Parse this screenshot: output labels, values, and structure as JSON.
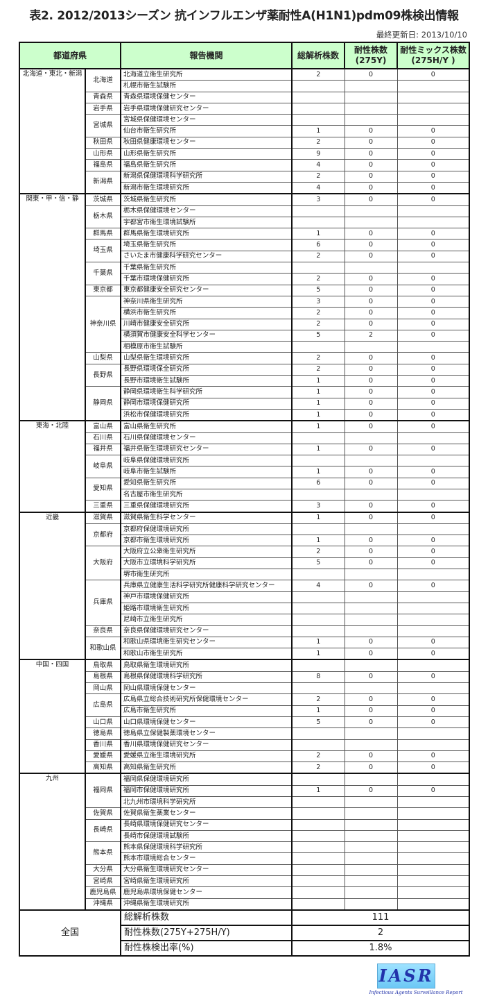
{
  "title": "表2. 2012/2013シーズン 抗インフルエンザ薬耐性A(H1N1)pdm09株検出情報",
  "updated": "最終更新日:  2013/10/10",
  "header_color": "#ccffcc",
  "columns": [
    "都道府県",
    "報告機関",
    "総解析株数",
    "耐性株数\n(275Y)",
    "耐性ミックス株数\n(275H/Y )"
  ],
  "regions": [
    {
      "name": "北海道・東北・新潟",
      "prefectures": [
        {
          "name": "北海道",
          "rows": [
            [
              "北海道立衛生研究所",
              "2",
              "0",
              "0"
            ],
            [
              "札幌市衛生試験所",
              "",
              "",
              ""
            ]
          ]
        },
        {
          "name": "青森県",
          "rows": [
            [
              "青森県環境保健センター",
              "",
              "",
              ""
            ]
          ]
        },
        {
          "name": "岩手県",
          "rows": [
            [
              "岩手県環境保健研究センター",
              "",
              "",
              ""
            ]
          ]
        },
        {
          "name": "宮城県",
          "rows": [
            [
              "宮城県保健環境センター",
              "",
              "",
              ""
            ],
            [
              "仙台市衛生研究所",
              "1",
              "0",
              "0"
            ]
          ]
        },
        {
          "name": "秋田県",
          "rows": [
            [
              "秋田県健康環境センター",
              "2",
              "0",
              "0"
            ]
          ]
        },
        {
          "name": "山形県",
          "rows": [
            [
              "山形県衛生研究所",
              "9",
              "0",
              "0"
            ]
          ]
        },
        {
          "name": "福島県",
          "rows": [
            [
              "福島県衛生研究所",
              "4",
              "0",
              "0"
            ]
          ]
        },
        {
          "name": "新潟県",
          "rows": [
            [
              "新潟県保健環境科学研究所",
              "2",
              "0",
              "0"
            ],
            [
              "新潟市衛生環境研究所",
              "4",
              "0",
              "0"
            ]
          ]
        }
      ]
    },
    {
      "name": "関東・甲・信・静",
      "prefectures": [
        {
          "name": "茨城県",
          "rows": [
            [
              "茨城県衛生研究所",
              "3",
              "0",
              "0"
            ]
          ]
        },
        {
          "name": "栃木県",
          "rows": [
            [
              "栃木県保健環境センター",
              "",
              "",
              ""
            ],
            [
              "宇都宮市衛生環境試験所",
              "",
              "",
              ""
            ]
          ]
        },
        {
          "name": "群馬県",
          "rows": [
            [
              "群馬県衛生環境研究所",
              "1",
              "0",
              "0"
            ]
          ]
        },
        {
          "name": "埼玉県",
          "rows": [
            [
              "埼玉県衛生研究所",
              "6",
              "0",
              "0"
            ],
            [
              "さいたま市健康科学研究センター",
              "2",
              "0",
              "0"
            ]
          ]
        },
        {
          "name": "千葉県",
          "rows": [
            [
              "千葉県衛生研究所",
              "",
              "",
              ""
            ],
            [
              "千葉市環境保健研究所",
              "2",
              "0",
              "0"
            ]
          ]
        },
        {
          "name": "東京都",
          "rows": [
            [
              "東京都健康安全研究センター",
              "5",
              "0",
              "0"
            ]
          ]
        },
        {
          "name": "神奈川県",
          "rows": [
            [
              "神奈川県衛生研究所",
              "3",
              "0",
              "0"
            ],
            [
              "横浜市衛生研究所",
              "2",
              "0",
              "0"
            ],
            [
              "川崎市健康安全研究所",
              "2",
              "0",
              "0"
            ],
            [
              "横須賀市健康安全科学センター",
              "5",
              "2",
              "0"
            ],
            [
              "相模原市衛生試験所",
              "",
              "",
              ""
            ]
          ]
        },
        {
          "name": "山梨県",
          "rows": [
            [
              "山梨県衛生環境研究所",
              "2",
              "0",
              "0"
            ]
          ]
        },
        {
          "name": "長野県",
          "rows": [
            [
              "長野県環境保全研究所",
              "2",
              "0",
              "0"
            ],
            [
              "長野市環境衛生試験所",
              "1",
              "0",
              "0"
            ]
          ]
        },
        {
          "name": "静岡県",
          "rows": [
            [
              "静岡県環境衛生科学研究所",
              "1",
              "0",
              "0"
            ],
            [
              "静岡市環境保健研究所",
              "1",
              "0",
              "0"
            ],
            [
              "浜松市保健環境研究所",
              "1",
              "0",
              "0"
            ]
          ]
        }
      ]
    },
    {
      "name": "東海・北陸",
      "prefectures": [
        {
          "name": "富山県",
          "rows": [
            [
              "富山県衛生研究所",
              "1",
              "0",
              "0"
            ]
          ]
        },
        {
          "name": "石川県",
          "rows": [
            [
              "石川県保健環境センター",
              "",
              "",
              ""
            ]
          ]
        },
        {
          "name": "福井県",
          "rows": [
            [
              "福井県衛生環境研究センター",
              "1",
              "0",
              "0"
            ]
          ]
        },
        {
          "name": "岐阜県",
          "rows": [
            [
              "岐阜県保健環境研究所",
              "",
              "",
              ""
            ],
            [
              "岐阜市衛生試験所",
              "1",
              "0",
              "0"
            ]
          ]
        },
        {
          "name": "愛知県",
          "rows": [
            [
              "愛知県衛生研究所",
              "6",
              "0",
              "0"
            ],
            [
              "名古屋市衛生研究所",
              "",
              "",
              ""
            ]
          ]
        },
        {
          "name": "三重県",
          "rows": [
            [
              "三重県保健環境研究所",
              "3",
              "0",
              "0"
            ]
          ]
        }
      ]
    },
    {
      "name": "近畿",
      "prefectures": [
        {
          "name": "滋賀県",
          "rows": [
            [
              "滋賀県衛生科学センター",
              "1",
              "0",
              "0"
            ]
          ]
        },
        {
          "name": "京都府",
          "rows": [
            [
              "京都府保健環境研究所",
              "",
              "",
              ""
            ],
            [
              "京都市衛生環境研究所",
              "1",
              "0",
              "0"
            ]
          ]
        },
        {
          "name": "大阪府",
          "rows": [
            [
              "大阪府立公衆衛生研究所",
              "2",
              "0",
              "0"
            ],
            [
              "大阪市立環境科学研究所",
              "5",
              "0",
              "0"
            ],
            [
              "堺市衛生研究所",
              "",
              "",
              ""
            ]
          ]
        },
        {
          "name": "兵庫県",
          "rows": [
            [
              "兵庫県立健康生活科学研究所健康科学研究センター",
              "4",
              "0",
              "0"
            ],
            [
              "神戸市環境保健研究所",
              "",
              "",
              ""
            ],
            [
              "姫路市環境衛生研究所",
              "",
              "",
              ""
            ],
            [
              "尼崎市立衛生研究所",
              "",
              "",
              ""
            ]
          ]
        },
        {
          "name": "奈良県",
          "rows": [
            [
              "奈良県保健環境研究センター",
              "",
              "",
              ""
            ]
          ]
        },
        {
          "name": "和歌山県",
          "rows": [
            [
              "和歌山県環境衛生研究センター",
              "1",
              "0",
              "0"
            ],
            [
              "和歌山市衛生研究所",
              "1",
              "0",
              "0"
            ]
          ]
        }
      ]
    },
    {
      "name": "中国・四国",
      "prefectures": [
        {
          "name": "鳥取県",
          "rows": [
            [
              "鳥取県衛生環境研究所",
              "",
              "",
              ""
            ]
          ]
        },
        {
          "name": "島根県",
          "rows": [
            [
              "島根県保健環境科学研究所",
              "8",
              "0",
              "0"
            ]
          ]
        },
        {
          "name": "岡山県",
          "rows": [
            [
              "岡山県環境保健センター",
              "",
              "",
              ""
            ]
          ]
        },
        {
          "name": "広島県",
          "rows": [
            [
              "広島県立総合技術研究所保健環境センター",
              "2",
              "0",
              "0"
            ],
            [
              "広島市衛生研究所",
              "1",
              "0",
              "0"
            ]
          ]
        },
        {
          "name": "山口県",
          "rows": [
            [
              "山口県環境保健センター",
              "5",
              "0",
              "0"
            ]
          ]
        },
        {
          "name": "徳島県",
          "rows": [
            [
              "徳島県立保健製薬環境センター",
              "",
              "",
              ""
            ]
          ]
        },
        {
          "name": "香川県",
          "rows": [
            [
              "香川県環境保健研究センター",
              "",
              "",
              ""
            ]
          ]
        },
        {
          "name": "愛媛県",
          "rows": [
            [
              "愛媛県立衛生環境研究所",
              "2",
              "0",
              "0"
            ]
          ]
        },
        {
          "name": "高知県",
          "rows": [
            [
              "高知県衛生研究所",
              "2",
              "0",
              "0"
            ]
          ]
        }
      ]
    },
    {
      "name": "九州",
      "prefectures": [
        {
          "name": "福岡県",
          "rows": [
            [
              "福岡県保健環境研究所",
              "",
              "",
              ""
            ],
            [
              "福岡市保健環境研究所",
              "1",
              "0",
              "0"
            ],
            [
              "北九州市環境科学研究所",
              "",
              "",
              ""
            ]
          ]
        },
        {
          "name": "佐賀県",
          "rows": [
            [
              "佐賀県衛生薬業センター",
              "",
              "",
              ""
            ]
          ]
        },
        {
          "name": "長崎県",
          "rows": [
            [
              "長崎県環境保健研究センター",
              "",
              "",
              ""
            ],
            [
              "長崎市保健環境試験所",
              "",
              "",
              ""
            ]
          ]
        },
        {
          "name": "熊本県",
          "rows": [
            [
              "熊本県保健環境科学研究所",
              "",
              "",
              ""
            ],
            [
              "熊本市環境総合センター",
              "",
              "",
              ""
            ]
          ]
        },
        {
          "name": "大分県",
          "rows": [
            [
              "大分県衛生環境研究センター",
              "",
              "",
              ""
            ]
          ]
        },
        {
          "name": "宮崎県",
          "rows": [
            [
              "宮崎県衛生環境研究所",
              "",
              "",
              ""
            ]
          ]
        },
        {
          "name": "鹿児島県",
          "rows": [
            [
              "鹿児島県環境保健センター",
              "",
              "",
              ""
            ]
          ]
        },
        {
          "name": "沖縄県",
          "rows": [
            [
              "沖縄県衛生環境研究所",
              "",
              "",
              ""
            ]
          ]
        }
      ]
    }
  ],
  "summary": {
    "label": "全国",
    "rows": [
      [
        "総解析株数",
        "111"
      ],
      [
        "耐性株数(275Y+275H/Y)",
        "2"
      ],
      [
        "耐性株検出率(%)",
        "1.8%"
      ]
    ]
  },
  "logo": {
    "text": "IASR",
    "subtitle": "Infectious Agents Surveillance Report"
  }
}
